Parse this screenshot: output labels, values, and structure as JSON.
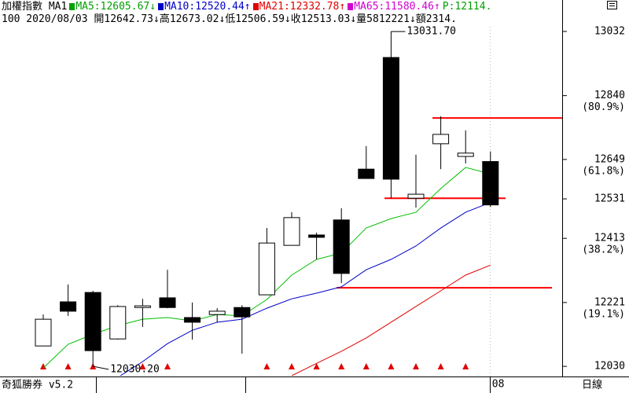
{
  "header": {
    "line1": [
      {
        "text": "加權指數 MA1",
        "color": "#000000",
        "marker": false
      },
      {
        "text": "MA5:12605.67↓",
        "color": "#00a000",
        "marker": true
      },
      {
        "text": "MA10:12520.44↑",
        "color": "#0000c8",
        "marker": true
      },
      {
        "text": "MA21:12332.78↑",
        "color": "#e00000",
        "marker": true
      },
      {
        "text": "MA65:11580.46↑",
        "color": "#d000d0",
        "marker": true
      },
      {
        "text": "P:12114.",
        "color": "#00a000",
        "marker": false
      }
    ],
    "line2": "100 2020/08/03 開12642.73↓高12673.02↓低12506.59↓收12513.03↓量5812221↓額2314."
  },
  "footer": {
    "product": "奇狐勝券 v5.2",
    "period": "日線"
  },
  "chart_data": {
    "type": "candlestick",
    "categories": [
      null,
      null,
      null,
      null,
      null,
      null,
      null,
      null,
      null,
      null,
      null,
      null,
      null,
      null,
      null,
      null,
      null,
      null,
      "08"
    ],
    "open": [
      12091,
      12223,
      12251,
      12112,
      12206,
      12235,
      12176,
      12185,
      12206,
      12244,
      12392,
      12423,
      12468,
      12620,
      12954,
      12533,
      12696,
      12658,
      12642.73
    ],
    "high": [
      12185,
      12275,
      12256,
      12213,
      12232,
      12319,
      12221,
      12204,
      12213,
      12444,
      12491,
      12430,
      12503,
      12689,
      13031.7,
      12663,
      12778,
      12736,
      12673.02
    ],
    "low": [
      12091,
      12181,
      12030.2,
      12110,
      12148,
      12204,
      12110,
      12162,
      12068,
      12244,
      12392,
      12350,
      12279,
      12592,
      12533,
      12505,
      12620,
      12637,
      12506.59
    ],
    "close": [
      12171,
      12195,
      12077,
      12209,
      12211,
      12206,
      12162,
      12195,
      12178,
      12399,
      12475,
      12416,
      12308,
      12592,
      12590,
      12545,
      12724,
      12668,
      12513.03
    ],
    "up_color": "#ffffff",
    "down_color": "#000000",
    "ma_lines": [
      {
        "color": "#00c000",
        "values": [
          12025,
          12096,
          12126,
          12152,
          12171,
          12176,
          12166,
          12185,
          12181,
          12230,
          12303,
          12350,
          12369,
          12444,
          12472,
          12491,
          12562,
          12625,
          12605.67
        ]
      },
      {
        "color": "#0000c8",
        "values": [
          null,
          null,
          null,
          11997,
          12044,
          12098,
          12138,
          12162,
          12171,
          12204,
          12232,
          12249,
          12268,
          12319,
          12350,
          12390,
          12444,
          12491,
          12520.44
        ]
      },
      {
        "color": "#e00000",
        "values": [
          null,
          null,
          null,
          null,
          null,
          null,
          null,
          null,
          null,
          null,
          12002,
          12039,
          12075,
          12115,
          12162,
          12209,
          12256,
          12303,
          12332.78
        ]
      }
    ],
    "high_label": "13031.70",
    "low_label": "12030.20",
    "drawn_lines": [
      12773,
      12533,
      12265
    ],
    "drawn_line_color": "#ff0000",
    "signals": [
      true,
      true,
      true,
      false,
      true,
      true,
      false,
      false,
      false,
      true,
      true,
      true,
      true,
      true,
      true,
      true,
      true,
      true,
      false
    ],
    "signal_color": "#e00000",
    "ylim": [
      12002,
      13079
    ],
    "yticks": [
      12030,
      12221,
      12413,
      12531,
      12649,
      12840,
      13032
    ],
    "fib_labels": [
      {
        "value": 12221,
        "label": "(19.1%)"
      },
      {
        "value": 12413,
        "label": "(38.2%)"
      },
      {
        "value": 12649,
        "label": "(61.8%)"
      },
      {
        "value": 12840,
        "label": "(80.9%)"
      }
    ]
  }
}
